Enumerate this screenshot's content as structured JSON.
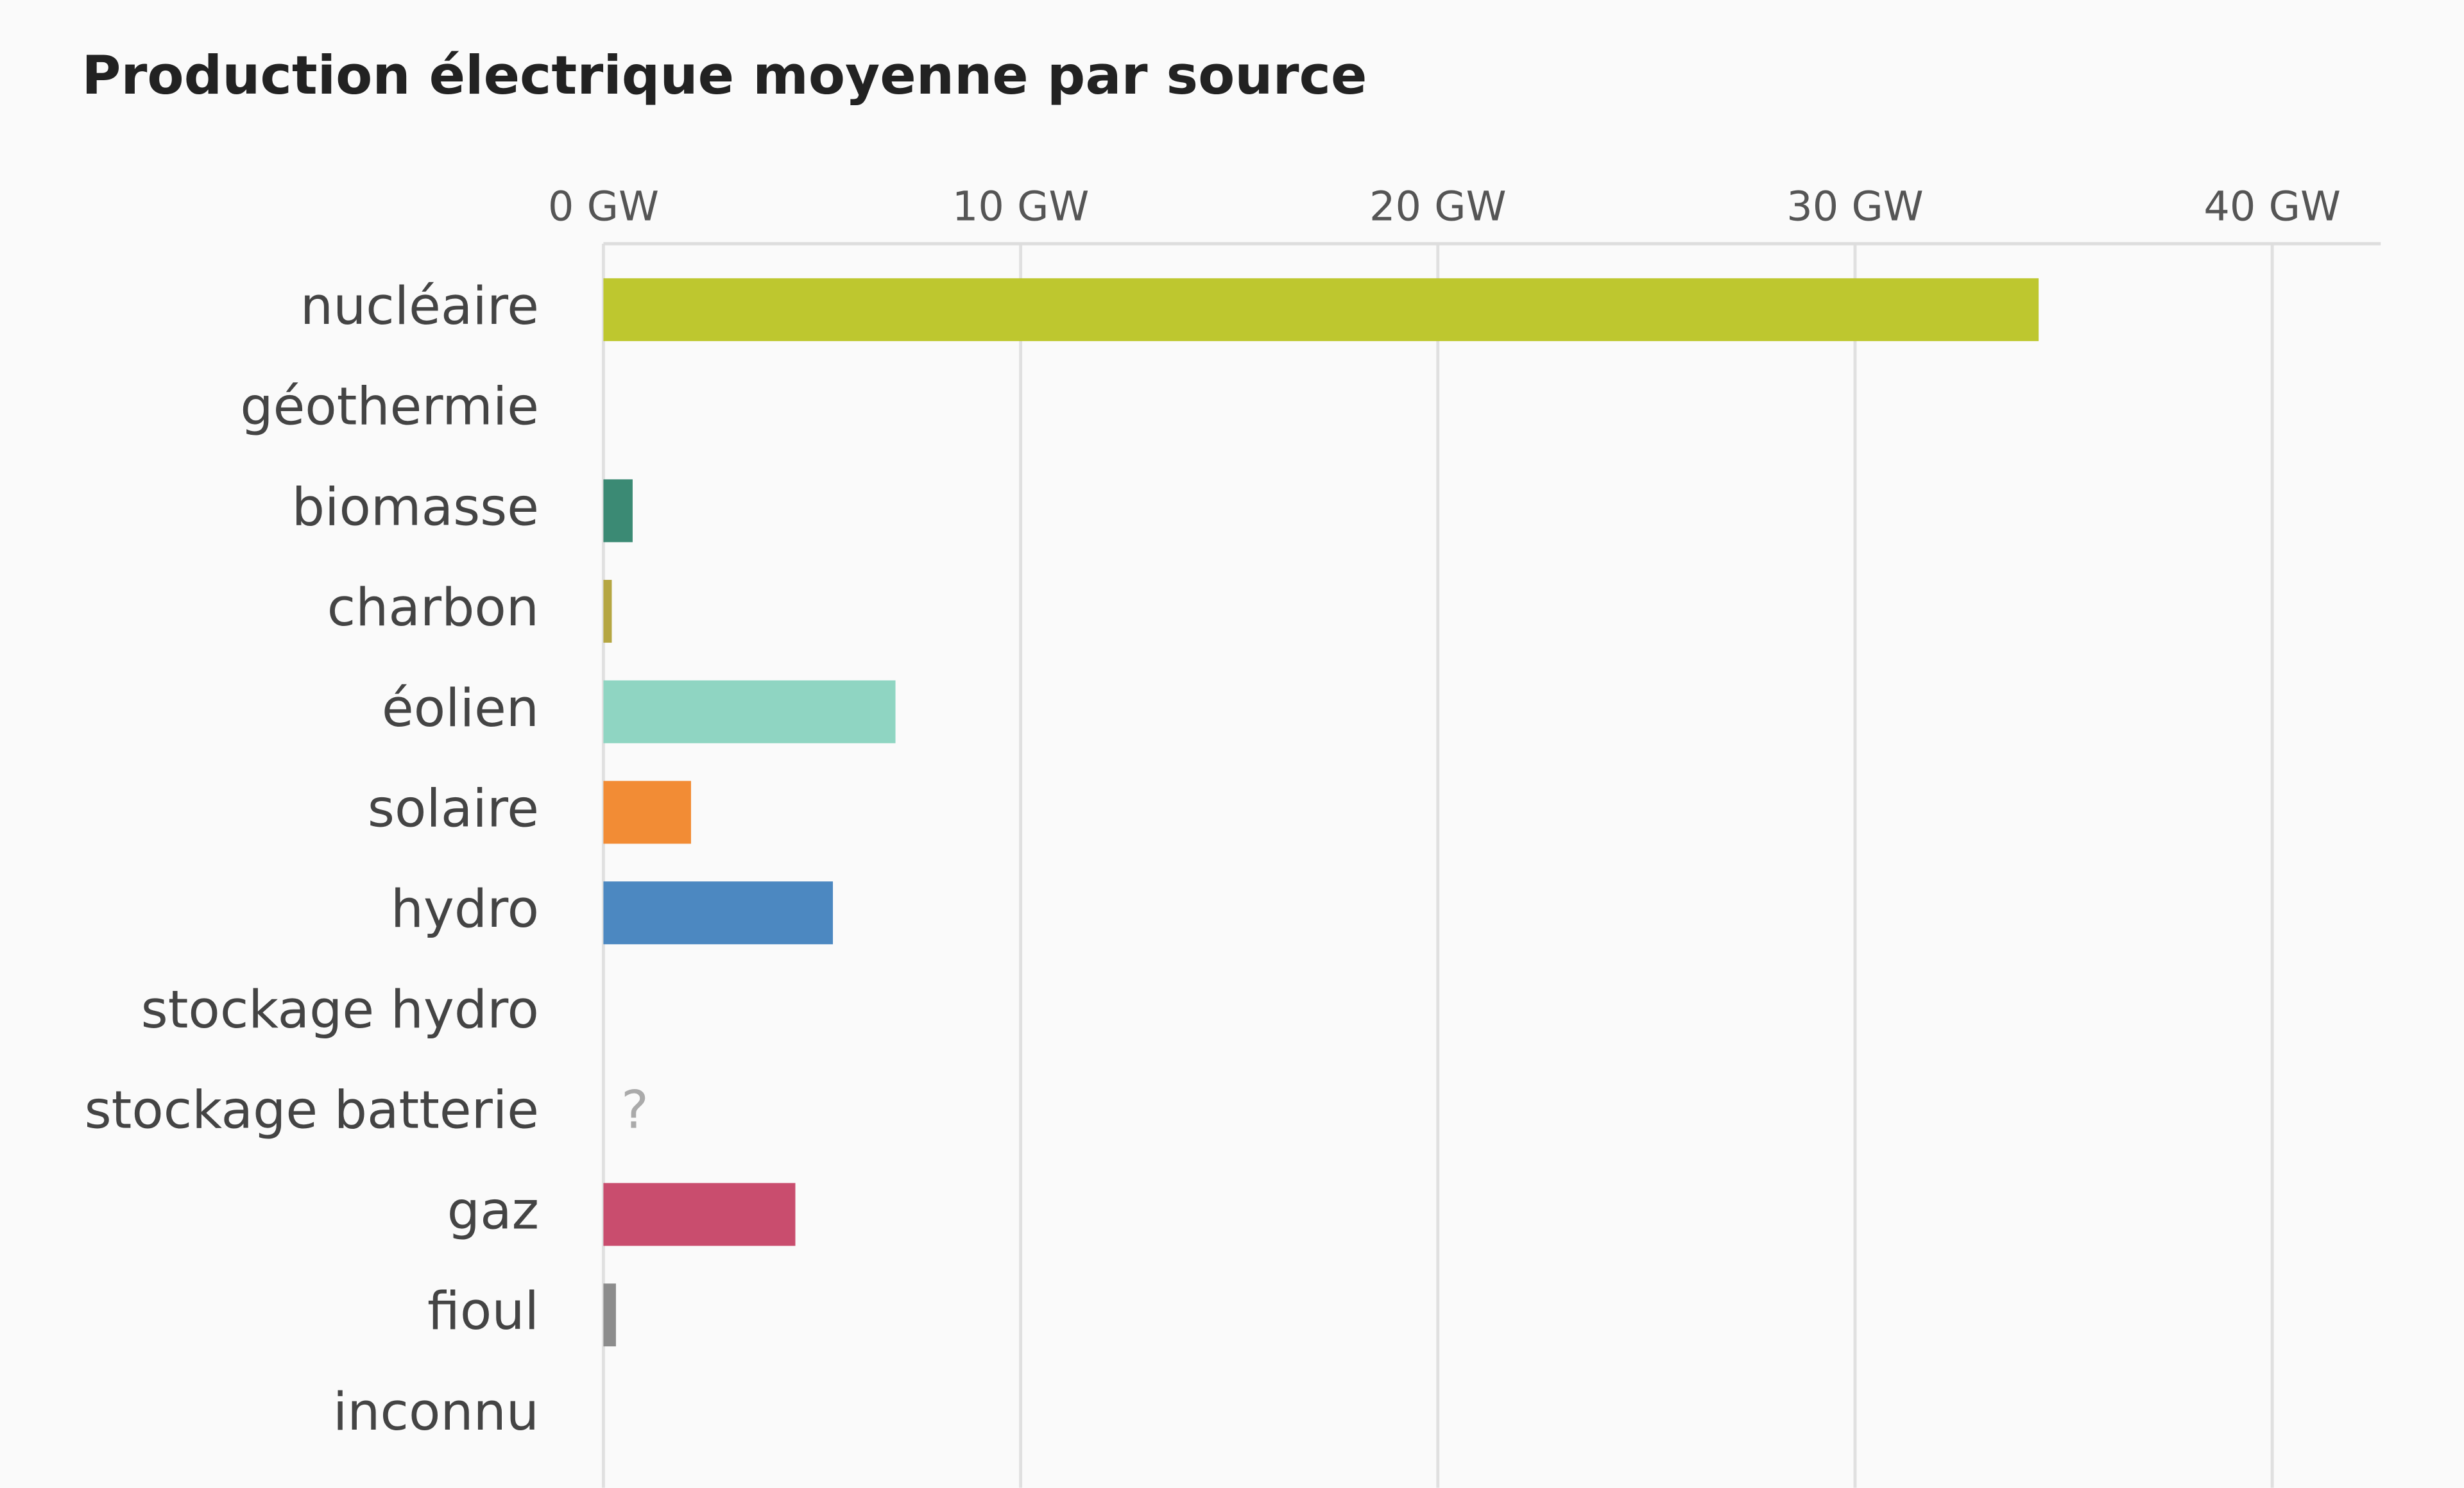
{
  "chart_data": {
    "type": "bar",
    "orientation": "horizontal",
    "title": "Production électrique moyenne par source",
    "categories": [
      "nucléaire",
      "géothermie",
      "biomasse",
      "charbon",
      "éolien",
      "solaire",
      "hydro",
      "stockage hydro",
      "stockage batterie",
      "gaz",
      "fioul",
      "inconnu"
    ],
    "values": [
      34.4,
      0,
      0.7,
      0.2,
      7.0,
      2.1,
      5.5,
      0,
      null,
      4.6,
      0.3,
      0
    ],
    "value_labels": [
      null,
      null,
      null,
      null,
      null,
      null,
      null,
      null,
      "?",
      null,
      null,
      null
    ],
    "colors": [
      "#bec72f",
      null,
      "#3b8a74",
      "#b5a642",
      "#8fd5c2",
      "#f28c35",
      "#4c88c1",
      null,
      null,
      "#c94d6e",
      "#8c8c8c",
      null
    ],
    "xlim": [
      0,
      42.6
    ],
    "xticks": [
      {
        "value": 0,
        "label": "0 GW"
      },
      {
        "value": 10,
        "label": "10 GW"
      },
      {
        "value": 20,
        "label": "20 GW"
      },
      {
        "value": 30,
        "label": "30 GW"
      },
      {
        "value": 40,
        "label": "40 GW"
      }
    ],
    "grid": true
  }
}
